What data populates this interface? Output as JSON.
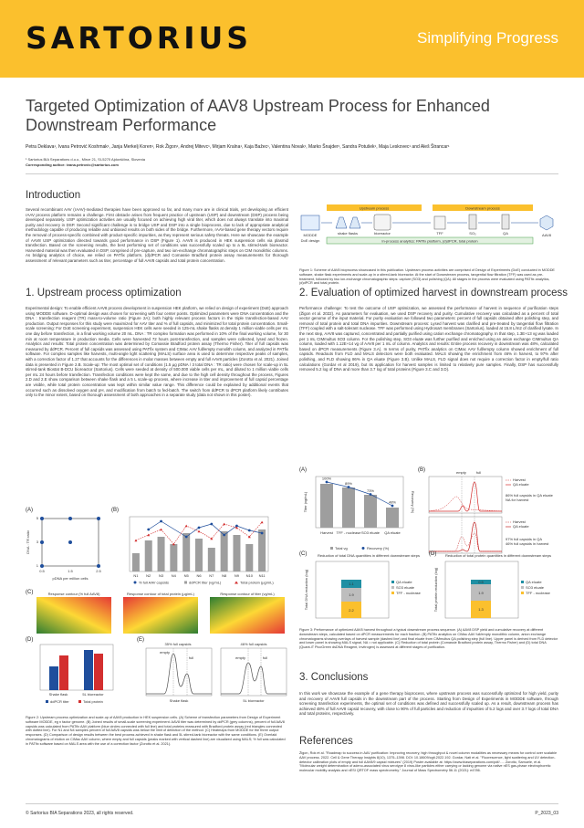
{
  "header": {
    "logo": "SARTORIUS",
    "tagline": "Simplifying Progress"
  },
  "title": "Targeted Optimization of AAV8 Upstream Process for Enhanced Downstream Performance",
  "authors": "Petra Deklava¹, Ivana Petrović Koshmak¹, Janja Merkelj Koren¹, Rok Žigon¹, Andrej Mitevc¹, Mirjam Kralna¹, Kaja Bažec¹, Valentina Novak¹, Marko Šnajder¹, Sandra Potušek¹, Maja Leskovec¹ and Aleš Štrancar¹",
  "affiliation": "¹ Sartorius BIA Separations d.o.o., Mirce 21, SI-5270 Ajdovščina, Slovenia",
  "corresponding": "Corresponding author: ivana.petrovic@sartorius.com",
  "sections": {
    "intro": "Introduction",
    "s1": "1. Upstream process optimization",
    "s2": "2. Evaluation of optimized harvest in downstream process",
    "s3": "3. Conclusions",
    "refs": "References"
  },
  "intro_text": "Several recombinant AAV (rAAV)-mediated therapies have been approved so far, and many more are in clinical trials, yet developing an efficient rAAV process platform remains a challenge. First obstacle arises from frequent practice of upstream (USP) and downstream (DSP) process being developed separately. USP optimization activities are usually focused on achieving high viral titer, which does not always translate into maximal purity and recovery in DSP. Second significant challenge is to bridge USP and DSP into a single bioprocess, due to lack of appropriate analytical methodology capable of producing reliable and unbiased results on both sides of the bridge. Furthermore, rAAV-based gene therapy vectors require the removal of process-specific combined with product-specific impurities, as they represent serious safety threats. Here we showcase the example of AAV8 USP optimization directed towards good performance in DSP (Figure 1). AAV8 is produced in HEK suspension cells via plasmid transfection. Based on the screening results, the best performing set of conditions was successfully scaled up to a 5L stirred-tank bioreactor. Harvested material was then evaluated in DSP, comprised of pre-capture, and two ion-exchange chromatographic steps on CIM monolithic columns. As bridging analytics of choice, we relied on PATfix platform, (d)dPCR and Comassie Bradford protein assay measurements for thorough assessment of relevant parameters such as titer, percentage of full AAV8 capsids and total protein concentration.",
  "fig1": {
    "upstream": "Upstream process",
    "downstream": "Downstream process",
    "modde": "MODDE",
    "doe": "DoE design",
    "shake": "shake flasks",
    "bioreactor": "bioreactor",
    "tff": "TFF",
    "so3": "SO₃",
    "qa": "QA",
    "aav8": "AAV8",
    "bar": "In-process analytics: PATfix platform, (d)dPCR, total protein",
    "caption": "Figure 1: Scheme of AAV8 bioprocess showcased in this publication. Upstream process activities are comprised of Design of Experiments (DoE) conducted in MODDE software, shake flask experiments and scale-up in a stirred-tank bioreactor. At the start of Downstream process, tangential flow filtration (TFF) was used as pre-treatment, followed by two ion-exchange chromatographic steps: capture (SO3) and polishing (QA). All stages in the process were evaluated using PATfix analytics, (d)dPCR and total protein."
  },
  "s1_text": "Experimental design: To enable efficient AAV8 process development in suspension HEK platform, we relied on design of experiment (DoE) approach using MODDE software. D-optimal design was chosen for screening with four center points. Optimized parameters were DNA concentration and the DNA : transfection reagent (TR) mass-to-volume ratio (Figure 2A); both highly relevant process factors in the triple transfection-based AAV production. Output responses for this study were maximized for AAV titer and % of full capsids, and minimized for total protein concentration. Small-scale screening: For DoE screening experiment, suspension HEK cells were seeded in 125-mL shake flasks at density 1 million viable cells per mL one day before transfection, in a final working volume 20 mL. DNA : TR complex formation was performed in 10% of the final working volume, for 30 min at room temperature in production media. Cells were harvested 72 hours post-transfection, and samples were collected, lysed and frozen. Analytics and results: Total protein concentration was determined by Comassie Bradford protein assay (Thermo Fisher). Titer of full capsids was measured by ddPCR. Percent of full capsids was assessed using PATfix system and CIMac AAV full/empty monolith column, and analyzed in PATfix software. For complex samples like harvests, multi-angle light scattering (MALS) surface area is used to determine respective peaks of samples, with a correction factor of 1.27 that accounts for the differences in molar masses between empty and full AAV8 particles (Zorotto et al. 2021). Joined data is presented in Figure 2.B. Scale-up: The most optimal set of conditions (1.5 µg pDNA / 3 total DNA : TR ratio) were chosen for scale-up in 5L stirred-tank Biostat B-DCU bioreactor (Sartorius). Cells were seeded at density of 500.000 viable cells per mL, and diluted to 1 million viable cells per mL 24 hours before transfection. Transfection conditions were kept the same, and due to the high cell density throughout the process, Figures 2.D and 2.E show comparison between shake flask and a 5 L scale-up process, where increase in titer and improvement of full capsid percentage are visible, while total protein concentration was kept within similar value range. This difference could be explained by additional events that occurred such as dissolved oxygen and pH, and modification from batch to fed-batch. The switch from ddPCR to dPCR platform likely contributes only to the minor extent, based on thorough assessment of both approaches in a separate study (data not shown in this poster).",
  "fig2": {
    "A": "(A)",
    "B": "(B)",
    "C": "(C)",
    "D": "(D)",
    "E": "(E)",
    "a_ylabel": "DNA : TR ratio",
    "a_xlabel": "pDNA per million cells",
    "a_xticks": [
      "0.5",
      "1.5",
      "2.5"
    ],
    "a_yticks": [
      "1",
      "3",
      "5"
    ],
    "b_categories": [
      "N1",
      "N2",
      "N3",
      "N4",
      "N5",
      "N6",
      "N7",
      "N8",
      "N9",
      "N10",
      "N11"
    ],
    "b_legend": [
      "% full AAV capsids",
      "ddPCR titer (vg/mL)",
      "Total protein (µg/mL)"
    ],
    "c_titles": [
      "Response contour (% full AAV8)",
      "Response contour of total protein (µg/mL)",
      "Response contour of titer (vg/mL)"
    ],
    "d_categories": [
      "Shake flask",
      "5L bioreactor"
    ],
    "d_legend": [
      "ddPCR titer",
      "Total protein"
    ],
    "e_left": "35% full capsids",
    "e_right": "46% full capsids",
    "e_empty": "empty",
    "e_full": "full",
    "e_xl": "Shake flask",
    "e_xr": "5L bioreactor",
    "caption": "Figure 2: Upstream process optimization and scale-up of AAV8 production in HEK suspension cells. (A) Scheme of transfection parameters from Design of Experiment software MODDE, eg n factor genome. (B) Joined results of small-scale screening experiment: AAV8 titer was determined by ddPCR (grey columns), percent of full AAV8 capsids was calculated from PATfix AAV platform (blue circles connected with full line) and total proteins measured with Bradford protein assay (red triangles connected with dotted line). For N1 and N4 samples percent of full AAV8 capsids was below the limit of detection of the method. (C) Heatmaps from MODDE for the three output responses. (D) Comparison of design results between the best process achieved in shake flask and 5L stirred-tank bioreactor with the same conditions. (E) Overlaid chromatograms of elution on CIMac AAV column, where empty and full capsids (peaks marked with vertical dashed line) are visualized using MALS; % full was calculated in PATfix software based on MALS area with the use of a correction factor (Zorotto et al. 2021)."
  },
  "s2_text": "Performance challenge: To test the outcome of USP optimization, we assessed the performance of harvest in sequence of purification steps (Žigon et al. 2022). As parameters for evaluation, we used DSP recovery and purity. Cumulative recovery was calculated as a percent of total vector genome of the input material. For purity evaluation we followed two parameters: percent of full capsids obtained after polishing step, and removal of total protein and total DNA impurities. Downstream process: Lysed harvest was clarified and pre-treated by tangential flow filtration (TFF) coupled with a salt-tolerant nuclease. TFF was performed using Hydrosart membranes (Sartorius), loaded at 15.8 L/m2 of clarified lysate. In the next step, AAV8 was captured, concentrated and partially purified using cation exchange chromatography. In that step, 1.3E+13 vg was loaded per 1 mL CIMmultus SO3 column. For the polishing step, SO3 eluate was further purified and enriched using an anion exchange CIMmultus QA column, loaded with 1.12E+14 vg of AAV8 per 1 mL of column. Analytics and results: Entire process recovery in downstream was 48%, calculated based on dPCR measurements (Figure 3.A). In terms of purity, PATfix analytics on CIMac AAV full/empty column showed enrichment of full capsids. Readouts from FLD and MALS detectors were both evaluated. MALS showing the enrichment from 46% in harvest, to 97% after polishing, and FLD showing 86% in QA eluate (Figure 3.B). Unlike MALS, FLD signal does not require a correction factor in empty/full ratio calculations (Gordar et al 2019), but its application for harvest samples is limited to relatively pure samples. Finally, DSP has successfully removed 5.2 log of DNA and more than 3.7 log of total proteins (Figure 3.C and 3.D).",
  "fig3": {
    "A": "(A)",
    "B": "(B)",
    "C": "(C)",
    "D": "(D)",
    "a_categories": [
      "Harvest",
      "TFF - nuclease",
      "SO3 eluate",
      "QA eluate"
    ],
    "a_ylabel": "Titer (vg/mL)",
    "a_y2label": "Recovery (%)",
    "a_labels": [
      "100%",
      "89%",
      "73%",
      "48%"
    ],
    "a_legend": [
      "Total vg",
      "Recovery (%)"
    ],
    "b_empty": "empty",
    "b_full": "full",
    "b_harvest": "Harvest",
    "b_qa": "QA eluate",
    "b_note1": "86% full capsids in QA eluate",
    "b_note1b": "NA for harvest",
    "b_note2": "97% full capsids in QA",
    "b_note2b": "46% full capsids in harvest",
    "c_title": "Reduction of total DNA quantities in different downstream steps",
    "c_ylabel": "Total DNA reduction (log)",
    "c_vals": [
      "2.2",
      "1.9",
      "1.1"
    ],
    "c_legend": [
      "QA eluate",
      "SO3 eluate",
      "TFF - nuclease"
    ],
    "d_title": "Reduction of total protein quantities in different downstream steps",
    "d_ylabel": "Total protein reduction (log)",
    "d_vals": [
      "1.3",
      "1.9",
      "0.5"
    ],
    "d_legend": [
      "QA eluate",
      "SO3 eluate",
      "TFF - nuclease"
    ],
    "caption": "Figure 3: Performance of optimized AAV8 harvest throughout a typical downstream process sequence. (A) AAV8 DSP yield and cumulative recovery at different downstream steps, calculated based on dPCR measurements for each fraction. (B) PATfix analytics on CIMac AAV full/empty monolithic column, anion exchange chromatograms showing overlays of harvest sample (dashed line) and final eluate from CIMmultus QA polishing step (full line). Upper panel is derived from FLD detector and lower panel is showing MALS signal, NA = not applicable. (C) Reduction of total protein (Comassie Bradford protein assay, Thermo Fisher) and (D) total DNA (Quant-iT PicoGreen dsDNA Reagent, Invitrogen) is assessed at different stages of purification."
  },
  "s3_text": "In this work we showcase the example of a gene therapy bioprocess, where upstream process was successfully optimized for high yield, purity and recovery of AAV8 full capsids in the downstream part of the process. Starting from Design of Experiments in MODDE software, through screening transfection experiments, the optimal set of conditions was defined and successfully scaled up. As a result, downstream process has achieved 48% of full AAV8 capsid recovery, with close to 90% of full particles and reduction of impurities of 5.2 logs and over 3.7 logs of total DNA and total proteins, respectively.",
  "refs_text": "Žigon, Rok et al. \"Roadmap to success in AAV purification: Improving recovery, high throughput & novel column modalities as necessary means for control over scalable AAV process. 2022. Cell & Gene Therapy Insights 8(10), 1375–1398. DOI: 10.18609/cgti.2022.192. Gordar, Nati et al. \"Fluorescence, light scattering and UV detection-detector calibration plots of empty and full AAV8/9 capsid mixtures\" (2019) Poster available at: https://www.biaseparations.com/pdf/..... Zorotto, Samuele, et al. \"Molecular weight determination of adeno-associated virus serotype 8 virus-like particles either carrying or lacking genome via native nES gas-phase electrophoretic molecular mobility analysis and nESI QRTOF mass spectrometry.\" Journal of Mass Spectrometry 56.11 (2021): e4786.",
  "footer": {
    "copyright": "© Sartorius BIA Separations 2023, all rights reserved.",
    "code": "P_2023_03"
  },
  "colors": {
    "brand": "#fbc02d",
    "accent": "#fbc02d",
    "blue": "#1f4e9c",
    "red": "#d32f2f",
    "green": "#43a047",
    "grey": "#9e9e9e"
  }
}
